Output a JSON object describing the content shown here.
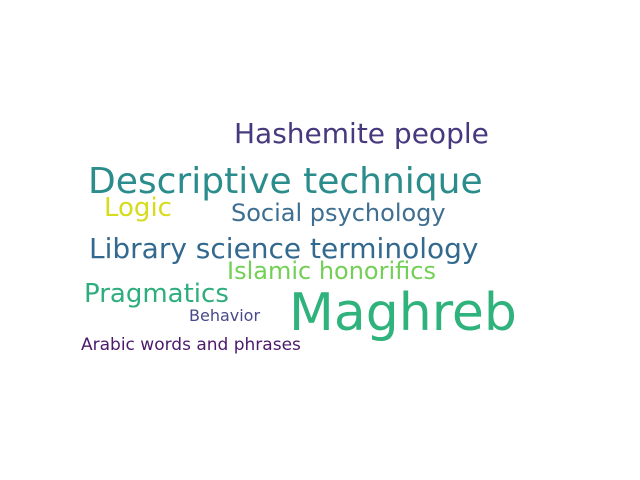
{
  "word_cloud": {
    "words": [
      {
        "text": "Hashemite people",
        "color": "#47397e"
      },
      {
        "text": "Descriptive technique",
        "color": "#2b8c8c"
      },
      {
        "text": "Logic",
        "color": "#d6dc1e"
      },
      {
        "text": "Social psychology",
        "color": "#3e6e91"
      },
      {
        "text": "Library science terminology",
        "color": "#33698f"
      },
      {
        "text": "Islamic honorifics",
        "color": "#73cf56"
      },
      {
        "text": "Pragmatics",
        "color": "#2fae7d"
      },
      {
        "text": "Maghreb",
        "color": "#2fb27b"
      },
      {
        "text": "Behavior",
        "color": "#46498a"
      },
      {
        "text": "Arabic words and phrases",
        "color": "#4b1a6b"
      }
    ]
  }
}
